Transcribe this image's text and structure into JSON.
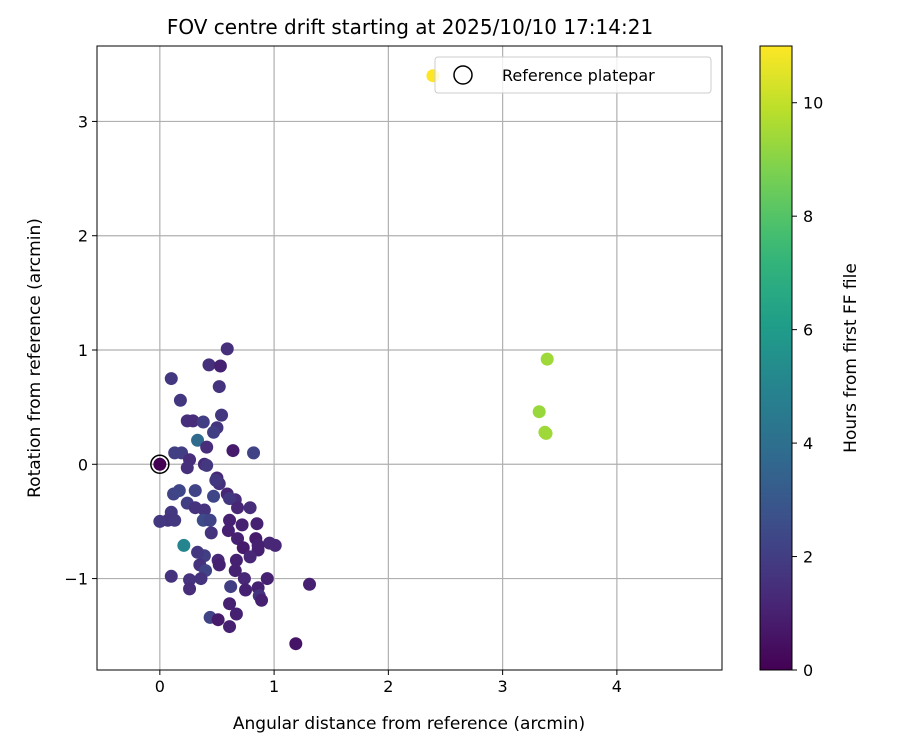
{
  "chart_data": {
    "type": "scatter",
    "title": "FOV centre drift starting at 2025/10/10 17:14:21",
    "xlabel": "Angular distance from reference (arcmin)",
    "ylabel": "Rotation from reference (arcmin)",
    "xlim": [
      -0.55,
      4.92
    ],
    "ylim": [
      -1.8,
      3.66
    ],
    "xticks": [
      0,
      1,
      2,
      3,
      4
    ],
    "yticks": [
      -1,
      0,
      1,
      2,
      3
    ],
    "xtick_labels": [
      "0",
      "1",
      "2",
      "3",
      "4"
    ],
    "ytick_labels": [
      "−1",
      "0",
      "1",
      "2",
      "3"
    ],
    "grid": true,
    "legend": {
      "position": "top-right",
      "entries": [
        "Reference platepar"
      ]
    },
    "reference_point": [
      0,
      0
    ],
    "colorbar": {
      "label": "Hours from first FF file",
      "range": [
        0,
        11
      ],
      "ticks": [
        0,
        2,
        4,
        6,
        8,
        10
      ],
      "tick_labels": [
        "0",
        "2",
        "4",
        "6",
        "8",
        "10"
      ],
      "colormap": "viridis"
    },
    "points": [
      [
        0.59,
        1.01,
        1.5
      ],
      [
        0.43,
        0.87,
        1.5
      ],
      [
        0.53,
        0.86,
        1.0
      ],
      [
        0.1,
        0.75,
        1.8
      ],
      [
        0.52,
        0.68,
        1.6
      ],
      [
        0.18,
        0.56,
        1.8
      ],
      [
        0.54,
        0.43,
        1.8
      ],
      [
        0.24,
        0.38,
        1.5
      ],
      [
        0.29,
        0.38,
        1.4
      ],
      [
        0.38,
        0.37,
        2.0
      ],
      [
        0.5,
        0.32,
        1.7
      ],
      [
        0.47,
        0.28,
        2.0
      ],
      [
        0.33,
        0.21,
        3.8
      ],
      [
        0.41,
        0.15,
        1.4
      ],
      [
        0.64,
        0.12,
        0.8
      ],
      [
        0.82,
        0.1,
        2.2
      ],
      [
        0.13,
        0.1,
        2.0
      ],
      [
        0.19,
        0.1,
        2.0
      ],
      [
        0.26,
        0.04,
        1.4
      ],
      [
        0.39,
        0.0,
        1.2
      ],
      [
        0.24,
        -0.03,
        1.5
      ],
      [
        0.41,
        -0.01,
        1.8
      ],
      [
        0.5,
        -0.12,
        1.2
      ],
      [
        0.52,
        -0.17,
        1.5
      ],
      [
        0.12,
        -0.26,
        2.2
      ],
      [
        0.17,
        -0.23,
        2.3
      ],
      [
        0.31,
        -0.23,
        2.2
      ],
      [
        0.49,
        -0.14,
        1.8
      ],
      [
        0.59,
        -0.26,
        1.2
      ],
      [
        0.66,
        -0.31,
        1.4
      ],
      [
        0.24,
        -0.34,
        2.0
      ],
      [
        0.31,
        -0.38,
        1.6
      ],
      [
        0.39,
        -0.4,
        1.6
      ],
      [
        0.47,
        -0.28,
        2.3
      ],
      [
        0.61,
        -0.3,
        1.8
      ],
      [
        0.68,
        -0.38,
        1.2
      ],
      [
        0.79,
        -0.38,
        1.4
      ],
      [
        0.1,
        -0.42,
        1.8
      ],
      [
        0.07,
        -0.49,
        1.6
      ],
      [
        0.13,
        -0.49,
        1.8
      ],
      [
        0.38,
        -0.49,
        2.5
      ],
      [
        0.44,
        -0.49,
        2.2
      ],
      [
        0.61,
        -0.49,
        1.0
      ],
      [
        0.72,
        -0.53,
        1.0
      ],
      [
        0.85,
        -0.52,
        1.0
      ],
      [
        0.6,
        -0.58,
        1.0
      ],
      [
        0.45,
        -0.6,
        1.6
      ],
      [
        0.68,
        -0.65,
        1.0
      ],
      [
        0.84,
        -0.65,
        0.8
      ],
      [
        0.96,
        -0.69,
        1.2
      ],
      [
        0.73,
        -0.73,
        0.8
      ],
      [
        0.86,
        -0.75,
        1.0
      ],
      [
        0.79,
        -0.81,
        1.2
      ],
      [
        0.67,
        -0.84,
        1.0
      ],
      [
        0.51,
        -0.84,
        1.2
      ],
      [
        0.39,
        -0.8,
        2.0
      ],
      [
        0.33,
        -0.77,
        1.8
      ],
      [
        0.21,
        -0.71,
        5.0
      ],
      [
        0.35,
        -0.88,
        1.6
      ],
      [
        0.4,
        -0.93,
        2.2
      ],
      [
        0.52,
        -0.88,
        1.0
      ],
      [
        0.66,
        -0.93,
        1.0
      ],
      [
        0.86,
        -0.71,
        1.0
      ],
      [
        1.01,
        -0.71,
        1.2
      ],
      [
        0.0,
        -0.5,
        1.8
      ],
      [
        0.26,
        -1.01,
        1.6
      ],
      [
        0.36,
        -1.0,
        1.6
      ],
      [
        0.74,
        -1.0,
        1.2
      ],
      [
        0.62,
        -1.07,
        2.0
      ],
      [
        0.75,
        -1.1,
        1.0
      ],
      [
        0.86,
        -1.08,
        1.0
      ],
      [
        0.87,
        -1.15,
        1.6
      ],
      [
        0.44,
        -1.34,
        2.2
      ],
      [
        0.51,
        -1.36,
        0.8
      ],
      [
        0.67,
        -1.31,
        1.0
      ],
      [
        0.61,
        -1.42,
        1.0
      ],
      [
        0.61,
        -1.22,
        1.0
      ],
      [
        0.89,
        -1.19,
        1.0
      ],
      [
        1.19,
        -1.57,
        0.6
      ],
      [
        1.31,
        -1.05,
        1.0
      ],
      [
        0.1,
        -0.98,
        1.6
      ],
      [
        0.94,
        -1.0,
        1.0
      ],
      [
        0.26,
        -1.09,
        1.4
      ],
      [
        3.39,
        0.92,
        9.4
      ],
      [
        3.32,
        0.46,
        9.3
      ],
      [
        3.38,
        0.27,
        9.4
      ],
      [
        3.37,
        0.28,
        9.4
      ],
      [
        2.39,
        3.4,
        11.0
      ],
      [
        0.0,
        0.0,
        0.0
      ]
    ]
  }
}
